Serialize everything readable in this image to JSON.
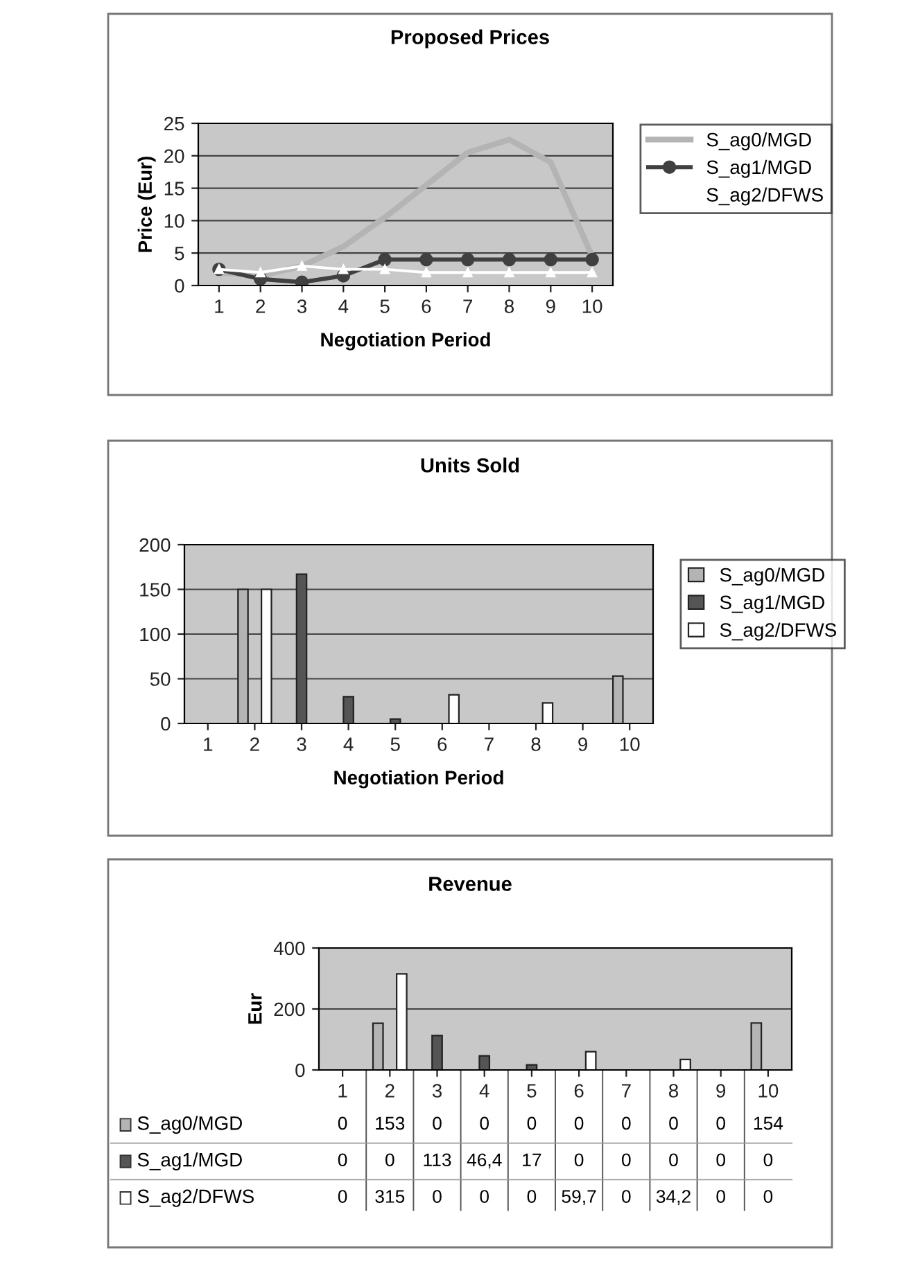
{
  "chart_data": [
    {
      "type": "line",
      "title": "Proposed Prices",
      "xlabel": "Negotiation Period",
      "ylabel": "Price (Eur)",
      "categories": [
        "1",
        "2",
        "3",
        "4",
        "5",
        "6",
        "7",
        "8",
        "9",
        "10"
      ],
      "ylim": [
        0,
        25
      ],
      "yticks": [
        0,
        5,
        10,
        15,
        20,
        25
      ],
      "grid": "y",
      "legend": "right",
      "series": [
        {
          "name": "S_ag0/MGD",
          "color": "#b4b4b4",
          "marker": "none",
          "values": [
            2,
            1.5,
            3,
            6,
            10.5,
            15.5,
            20.5,
            22.5,
            19,
            4.5
          ]
        },
        {
          "name": "S_ag1/MGD",
          "color": "#404040",
          "marker": "circle",
          "values": [
            2.5,
            1,
            0.5,
            1.5,
            4,
            4,
            4,
            4,
            4,
            4
          ]
        },
        {
          "name": "S_ag2/DFWS",
          "color": "#ffffff",
          "marker": "triangle",
          "values": [
            2.5,
            2,
            3,
            2.5,
            2.5,
            2,
            2,
            2,
            2,
            2
          ]
        }
      ]
    },
    {
      "type": "bar",
      "title": "Units Sold",
      "xlabel": "Negotiation Period",
      "categories": [
        "1",
        "2",
        "3",
        "4",
        "5",
        "6",
        "7",
        "8",
        "9",
        "10"
      ],
      "ylim": [
        0,
        200
      ],
      "yticks": [
        0,
        50,
        100,
        150,
        200
      ],
      "grid": "y",
      "legend": "right",
      "series": [
        {
          "name": "S_ag0/MGD",
          "color": "#b4b4b4",
          "values": [
            0,
            150,
            0,
            0,
            0,
            0,
            0,
            0,
            0,
            53
          ]
        },
        {
          "name": "S_ag1/MGD",
          "color": "#555555",
          "values": [
            0,
            0,
            167,
            30,
            5,
            0,
            0,
            0,
            0,
            0
          ]
        },
        {
          "name": "S_ag2/DFWS",
          "color": "#ffffff",
          "values": [
            0,
            150,
            0,
            0,
            0,
            32,
            0,
            23,
            0,
            0
          ]
        }
      ]
    },
    {
      "type": "bar",
      "title": "Revenue",
      "ylabel": "Eur",
      "categories": [
        "1",
        "2",
        "3",
        "4",
        "5",
        "6",
        "7",
        "8",
        "9",
        "10"
      ],
      "ylim": [
        0,
        400
      ],
      "yticks": [
        0,
        200,
        400
      ],
      "grid": "y",
      "legend": "bottom left",
      "series": [
        {
          "name": "S_ag0/MGD",
          "color": "#b4b4b4",
          "values": [
            0,
            153,
            0,
            0,
            0,
            0,
            0,
            0,
            0,
            154
          ],
          "value_labels": [
            "0",
            "153",
            "0",
            "0",
            "0",
            "0",
            "0",
            "0",
            "0",
            "154"
          ]
        },
        {
          "name": "S_ag1/MGD",
          "color": "#555555",
          "values": [
            0,
            0,
            113,
            46.4,
            17,
            0,
            0,
            0,
            0,
            0
          ],
          "value_labels": [
            "0",
            "0",
            "113",
            "46,4",
            "17",
            "0",
            "0",
            "0",
            "0",
            "0"
          ]
        },
        {
          "name": "S_ag2/DFWS",
          "color": "#ffffff",
          "values": [
            0,
            315,
            0,
            0,
            0,
            59.7,
            0,
            34.2,
            0,
            0
          ],
          "value_labels": [
            "0",
            "315",
            "0",
            "0",
            "0",
            "59,7",
            "0",
            "34,2",
            "0",
            "0"
          ]
        }
      ]
    }
  ]
}
